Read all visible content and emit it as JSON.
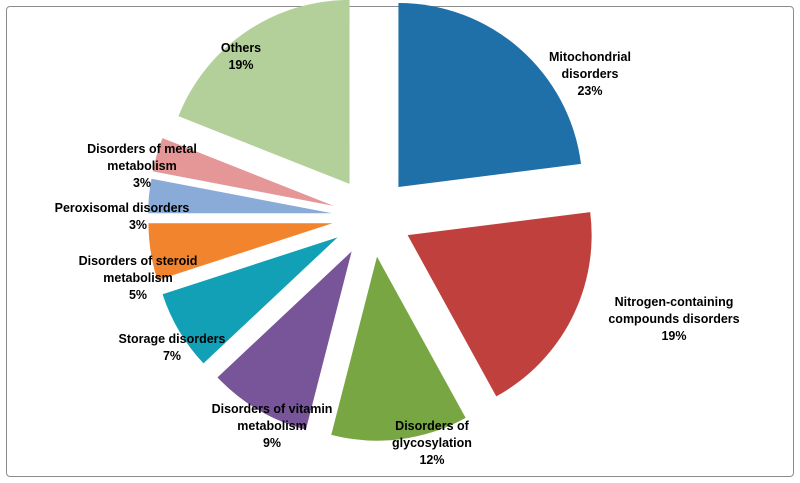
{
  "chart_data": {
    "type": "pie",
    "exploded": true,
    "start_angle_deg": 0,
    "direction": "clockwise",
    "slices": [
      {
        "label_lines": [
          "Mitochondrial",
          "disorders"
        ],
        "pct_label": "23%",
        "value": 23,
        "color": "#1f6fa8"
      },
      {
        "label_lines": [
          "Nitrogen-containing",
          "compounds  disorders"
        ],
        "pct_label": "19%",
        "value": 19,
        "color": "#c0403d"
      },
      {
        "label_lines": [
          "Disorders of",
          "glycosylation"
        ],
        "pct_label": "12%",
        "value": 12,
        "color": "#78a642"
      },
      {
        "label_lines": [
          "Disorders of vitamin",
          "metabolism"
        ],
        "pct_label": "9%",
        "value": 9,
        "color": "#775598"
      },
      {
        "label_lines": [
          "Storage disorders"
        ],
        "pct_label": "7%",
        "value": 7,
        "color": "#12a0b7"
      },
      {
        "label_lines": [
          "Disorders of steroid",
          "metabolism"
        ],
        "pct_label": "5%",
        "value": 5,
        "color": "#f1842d"
      },
      {
        "label_lines": [
          "Peroxisomal  disorders"
        ],
        "pct_label": "3%",
        "value": 3,
        "color": "#8aabd8"
      },
      {
        "label_lines": [
          "Disorders of metal",
          "metabolism"
        ],
        "pct_label": "3%",
        "value": 3,
        "color": "#e59696"
      },
      {
        "label_lines": [
          "Others"
        ],
        "pct_label": "19%",
        "value": 19,
        "color": "#b3d09a"
      }
    ]
  }
}
